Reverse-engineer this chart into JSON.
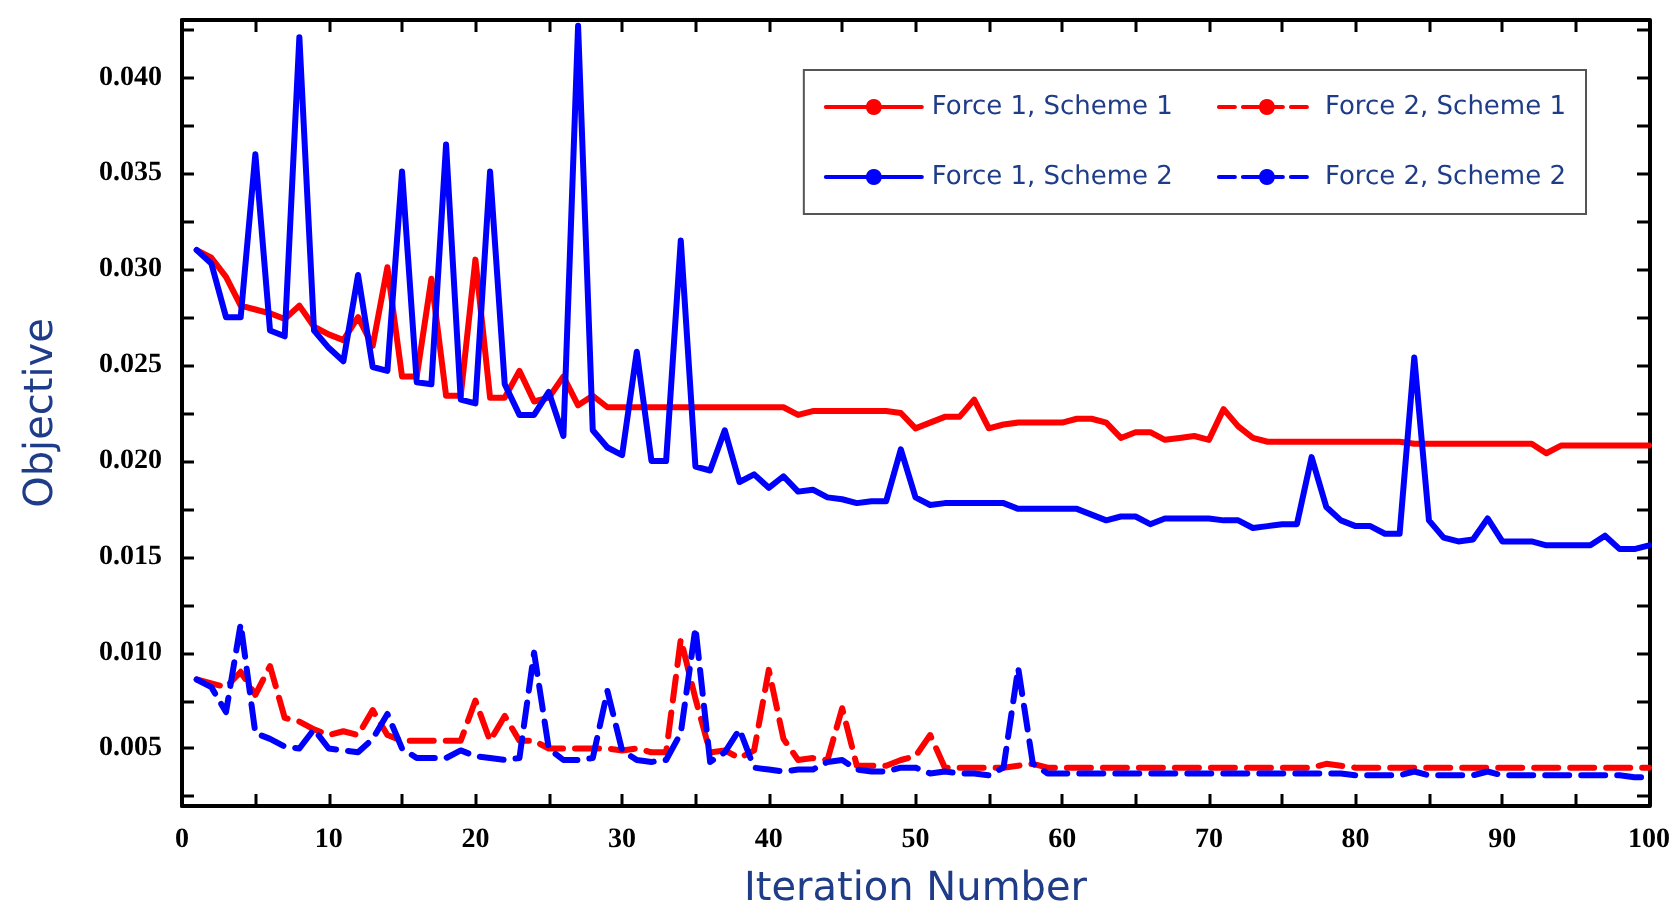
{
  "chart_data": {
    "type": "line",
    "xlabel": "Iteration Number",
    "ylabel": "Objective",
    "legend": "top right",
    "marker": "none",
    "xlim": [
      0,
      100
    ],
    "ylim": [
      0.002,
      0.043
    ],
    "xticks": [
      0,
      {
        "value": 5,
        "label": null
      },
      10,
      {
        "value": 15,
        "label": null
      },
      20,
      {
        "value": 25,
        "label": null
      },
      30,
      {
        "value": 35,
        "label": null
      },
      40,
      {
        "value": 45,
        "label": null
      },
      50,
      {
        "value": 55,
        "label": null
      },
      60,
      {
        "value": 65,
        "label": null
      },
      70,
      {
        "value": 75,
        "label": null
      },
      80,
      {
        "value": 85,
        "label": null
      },
      90,
      {
        "value": 95,
        "label": null
      },
      100
    ],
    "yticks": [
      {
        "value": 0.0025,
        "label": null
      },
      {
        "value": 0.005,
        "label": "0.005"
      },
      {
        "value": 0.0075,
        "label": null
      },
      {
        "value": 0.01,
        "label": "0.010"
      },
      {
        "value": 0.0125,
        "label": null
      },
      {
        "value": 0.015,
        "label": "0.015"
      },
      {
        "value": 0.0175,
        "label": null
      },
      {
        "value": 0.02,
        "label": "0.020"
      },
      {
        "value": 0.0225,
        "label": null
      },
      {
        "value": 0.025,
        "label": "0.025"
      },
      {
        "value": 0.0275,
        "label": null
      },
      {
        "value": 0.03,
        "label": "0.030"
      },
      {
        "value": 0.0325,
        "label": null
      },
      {
        "value": 0.035,
        "label": "0.035"
      },
      {
        "value": 0.0375,
        "label": null
      },
      {
        "value": 0.04,
        "label": "0.040"
      },
      {
        "value": 0.0425,
        "label": null
      }
    ],
    "x": [
      1,
      2,
      3,
      4,
      5,
      6,
      7,
      8,
      9,
      10,
      11,
      12,
      13,
      14,
      15,
      16,
      17,
      18,
      19,
      20,
      21,
      22,
      23,
      24,
      25,
      26,
      27,
      28,
      29,
      30,
      31,
      32,
      33,
      34,
      35,
      36,
      37,
      38,
      39,
      40,
      41,
      42,
      43,
      44,
      45,
      46,
      47,
      48,
      49,
      50,
      51,
      52,
      53,
      54,
      55,
      56,
      57,
      58,
      59,
      60,
      61,
      62,
      63,
      64,
      65,
      66,
      67,
      68,
      69,
      70,
      71,
      72,
      73,
      74,
      75,
      76,
      77,
      78,
      79,
      80,
      81,
      82,
      83,
      84,
      85,
      86,
      87,
      88,
      89,
      90,
      91,
      92,
      93,
      94,
      95,
      96,
      97,
      98,
      99,
      100
    ],
    "series": [
      {
        "name": "Force 1, Scheme 1",
        "color": "#ff0000",
        "line_style": "solid",
        "values": [
          0.031,
          0.0306,
          0.0296,
          0.0281,
          0.0279,
          0.0277,
          0.0274,
          0.0281,
          0.027,
          0.0266,
          0.0263,
          0.0275,
          0.026,
          0.0301,
          0.0244,
          0.0244,
          0.0295,
          0.0234,
          0.0234,
          0.0305,
          0.0233,
          0.0233,
          0.0247,
          0.0231,
          0.0233,
          0.0244,
          0.0229,
          0.0234,
          0.0228,
          0.0228,
          0.0228,
          0.0228,
          0.0228,
          0.0228,
          0.0228,
          0.0228,
          0.0228,
          0.0228,
          0.0228,
          0.0228,
          0.0228,
          0.0224,
          0.0226,
          0.0226,
          0.0226,
          0.0226,
          0.0226,
          0.0226,
          0.0225,
          0.0217,
          0.022,
          0.0223,
          0.0223,
          0.0232,
          0.0217,
          0.0219,
          0.022,
          0.022,
          0.022,
          0.022,
          0.0222,
          0.0222,
          0.022,
          0.0212,
          0.0215,
          0.0215,
          0.0211,
          0.0212,
          0.0213,
          0.0211,
          0.0227,
          0.0218,
          0.0212,
          0.021,
          0.021,
          0.021,
          0.021,
          0.021,
          0.021,
          0.021,
          0.021,
          0.021,
          0.021,
          0.0209,
          0.0209,
          0.0209,
          0.0209,
          0.0209,
          0.0209,
          0.0209,
          0.0209,
          0.0209,
          0.0204,
          0.0208,
          0.0208,
          0.0208,
          0.0208,
          0.0208,
          0.0208,
          0.0208
        ]
      },
      {
        "name": "Force 2, Scheme 1",
        "color": "#ff0000",
        "line_style": "dashed",
        "values": [
          0.0086,
          0.0084,
          0.0082,
          0.009,
          0.0078,
          0.0093,
          0.0066,
          0.0064,
          0.006,
          0.0057,
          0.0059,
          0.0057,
          0.007,
          0.0057,
          0.0054,
          0.0054,
          0.0054,
          0.0054,
          0.0054,
          0.0075,
          0.0054,
          0.0067,
          0.0054,
          0.0054,
          0.005,
          0.005,
          0.005,
          0.005,
          0.005,
          0.0049,
          0.005,
          0.0048,
          0.0048,
          0.0107,
          0.0076,
          0.0048,
          0.0049,
          0.0045,
          0.0049,
          0.0091,
          0.0055,
          0.0044,
          0.0045,
          0.0044,
          0.0071,
          0.0041,
          0.0041,
          0.0041,
          0.0044,
          0.0046,
          0.0057,
          0.004,
          0.004,
          0.004,
          0.004,
          0.004,
          0.0041,
          0.0042,
          0.004,
          0.004,
          0.004,
          0.004,
          0.004,
          0.004,
          0.004,
          0.004,
          0.004,
          0.004,
          0.004,
          0.004,
          0.004,
          0.004,
          0.004,
          0.004,
          0.004,
          0.004,
          0.004,
          0.0042,
          0.0041,
          0.004,
          0.004,
          0.004,
          0.004,
          0.004,
          0.004,
          0.004,
          0.004,
          0.004,
          0.004,
          0.004,
          0.004,
          0.004,
          0.004,
          0.004,
          0.004,
          0.004,
          0.004,
          0.004,
          0.004,
          0.004
        ]
      },
      {
        "name": "Force 1, Scheme 2",
        "color": "#0000ff",
        "line_style": "solid",
        "values": [
          0.031,
          0.0303,
          0.0275,
          0.0275,
          0.036,
          0.0268,
          0.0265,
          0.0421,
          0.0268,
          0.0259,
          0.0252,
          0.0297,
          0.0249,
          0.0247,
          0.0351,
          0.0241,
          0.024,
          0.0365,
          0.0232,
          0.023,
          0.0351,
          0.024,
          0.0224,
          0.0224,
          0.0236,
          0.0213,
          0.0427,
          0.0216,
          0.0207,
          0.0203,
          0.0257,
          0.02,
          0.02,
          0.0315,
          0.0197,
          0.0195,
          0.0216,
          0.0189,
          0.0193,
          0.0186,
          0.0192,
          0.0184,
          0.0185,
          0.0181,
          0.018,
          0.0178,
          0.0179,
          0.0179,
          0.0206,
          0.0181,
          0.0177,
          0.0178,
          0.0178,
          0.0178,
          0.0178,
          0.0178,
          0.0175,
          0.0175,
          0.0175,
          0.0175,
          0.0175,
          0.0172,
          0.0169,
          0.0171,
          0.0171,
          0.0167,
          0.017,
          0.017,
          0.017,
          0.017,
          0.0169,
          0.0169,
          0.0165,
          0.0166,
          0.0167,
          0.0167,
          0.0202,
          0.0176,
          0.0169,
          0.0166,
          0.0166,
          0.0162,
          0.0162,
          0.0254,
          0.0169,
          0.016,
          0.0158,
          0.0159,
          0.017,
          0.0158,
          0.0158,
          0.0158,
          0.0156,
          0.0156,
          0.0156,
          0.0156,
          0.0161,
          0.0154,
          0.0154,
          0.0156
        ]
      },
      {
        "name": "Force 2, Scheme 2",
        "color": "#0000ff",
        "line_style": "dashed",
        "values": [
          0.0086,
          0.0082,
          0.0069,
          0.0115,
          0.0058,
          0.0055,
          0.0051,
          0.005,
          0.006,
          0.005,
          0.0049,
          0.0048,
          0.0055,
          0.0068,
          0.005,
          0.0045,
          0.0045,
          0.0045,
          0.0049,
          0.0046,
          0.0045,
          0.0044,
          0.0045,
          0.01,
          0.005,
          0.0044,
          0.0044,
          0.0045,
          0.008,
          0.0049,
          0.0044,
          0.0043,
          0.0044,
          0.0058,
          0.0113,
          0.0043,
          0.0048,
          0.006,
          0.004,
          0.0039,
          0.0038,
          0.0039,
          0.0039,
          0.0043,
          0.0044,
          0.0039,
          0.0038,
          0.0038,
          0.004,
          0.004,
          0.0037,
          0.0038,
          0.0037,
          0.0037,
          0.0036,
          0.004,
          0.0092,
          0.0042,
          0.0037,
          0.0037,
          0.0037,
          0.0037,
          0.0037,
          0.0037,
          0.0037,
          0.0037,
          0.0037,
          0.0037,
          0.0037,
          0.0037,
          0.0037,
          0.0037,
          0.0037,
          0.0037,
          0.0037,
          0.0037,
          0.0037,
          0.0037,
          0.0037,
          0.0036,
          0.0036,
          0.0036,
          0.0036,
          0.0038,
          0.0036,
          0.0036,
          0.0036,
          0.0036,
          0.0038,
          0.0036,
          0.0036,
          0.0036,
          0.0036,
          0.0036,
          0.0036,
          0.0036,
          0.0036,
          0.0036,
          0.0035,
          0.0035
        ]
      }
    ]
  }
}
